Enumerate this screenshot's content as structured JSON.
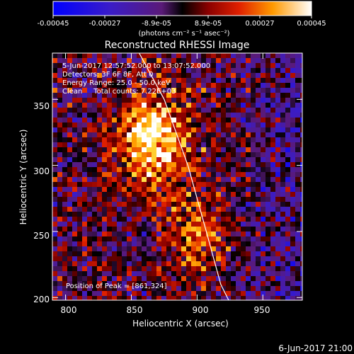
{
  "colorbar": {
    "tick_labels": [
      "-0.00045",
      "-0.00027",
      "-8.9e-05",
      "8.9e-05",
      "0.00027",
      "0.00045"
    ],
    "units_label": "(photons cm⁻² s⁻¹ asec⁻²)",
    "range": [
      -0.00045,
      0.00045
    ]
  },
  "chart_data": {
    "type": "heatmap",
    "title": "Reconstructed RHESSI Image",
    "xlabel": "Heliocentric X (arcsec)",
    "ylabel": "Heliocentric Y (arcsec)",
    "xlim": [
      790,
      980
    ],
    "ylim": [
      198,
      385
    ],
    "x_ticks": [
      800,
      850,
      900,
      950
    ],
    "y_ticks": [
      200,
      250,
      300,
      350
    ],
    "grid": false,
    "annotations": {
      "time_range": "5-Jun-2017 12:57:52.000 to 13:07:52.000",
      "detectors": "Detectors: 3F 6F 8F, Att 0",
      "energy_range": "Energy Range: 25.0 - 50.0 keV",
      "clean": "Clean     Total counts: 7.22E+03",
      "peak": "Position of Peak = [861,324]"
    },
    "peak_position": [
      861,
      324
    ],
    "limb_curve": {
      "x": [
        856,
        875,
        893,
        907,
        918,
        924
      ],
      "y": [
        385,
        350,
        300,
        250,
        210,
        198
      ]
    }
  },
  "footer": {
    "timestamp": "6-Jun-2017 21:00"
  }
}
